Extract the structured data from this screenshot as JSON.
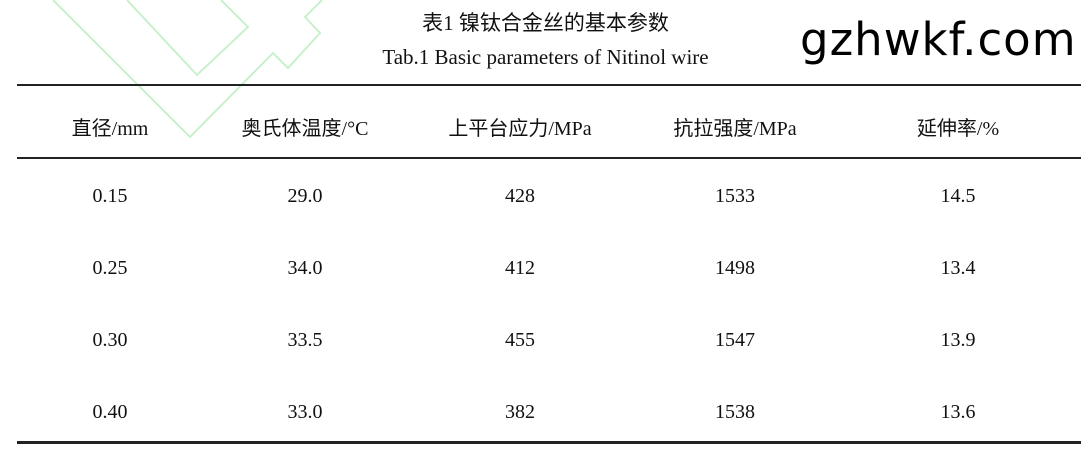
{
  "caption": {
    "zh": "表1  镍钛合金丝的基本参数",
    "en": "Tab.1 Basic parameters of Nitinol wire"
  },
  "table": {
    "headers": [
      "直径/mm",
      "奥氏体温度/°C",
      "上平台应力/MPa",
      "抗拉强度/MPa",
      "延伸率/%"
    ],
    "rows": [
      [
        "0.15",
        "29.0",
        "428",
        "1533",
        "14.5"
      ],
      [
        "0.25",
        "34.0",
        "412",
        "1498",
        "13.4"
      ],
      [
        "0.30",
        "33.5",
        "455",
        "1547",
        "13.9"
      ],
      [
        "0.40",
        "33.0",
        "382",
        "1538",
        "13.6"
      ]
    ]
  },
  "watermark": {
    "text": "gzhwkf.com",
    "logo_color": "#c8f0cc"
  }
}
